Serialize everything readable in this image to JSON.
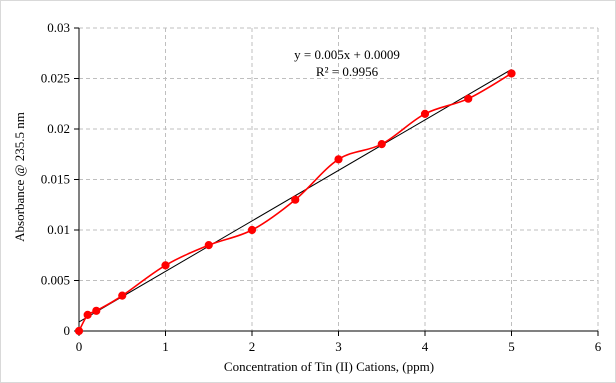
{
  "chart_data": {
    "type": "scatter",
    "xlabel": "Concentration of Tin (II) Cations, (ppm)",
    "ylabel": "Absorbance @ 235.5 nm",
    "xlim": [
      0,
      6
    ],
    "ylim": [
      0,
      0.03
    ],
    "x_ticks": [
      "0",
      "1",
      "2",
      "3",
      "4",
      "5",
      "6"
    ],
    "y_ticks": [
      "0",
      "0.005",
      "0.01",
      "0.015",
      "0.02",
      "0.025",
      "0.03"
    ],
    "grid": true,
    "legend": "none",
    "series": [
      {
        "x": [
          0,
          0.1,
          0.2,
          0.5,
          1.0,
          1.5,
          2.0,
          2.5,
          3.0,
          3.5,
          4.0,
          4.5,
          5.0
        ],
        "y": [
          0,
          0.0016,
          0.002,
          0.0035,
          0.0065,
          0.0085,
          0.01,
          0.013,
          0.017,
          0.0185,
          0.0215,
          0.023,
          0.0255
        ],
        "color": "#ff0000",
        "style": "smoothed-line-with-markers"
      }
    ],
    "trendline": {
      "type": "linear",
      "slope": 0.005,
      "intercept": 0.0009,
      "x_range": [
        0,
        5
      ],
      "color": "#000000"
    },
    "annotations": {
      "equation": "y = 0.005x + 0.0009",
      "r_squared": "R² = 0.9956"
    }
  }
}
